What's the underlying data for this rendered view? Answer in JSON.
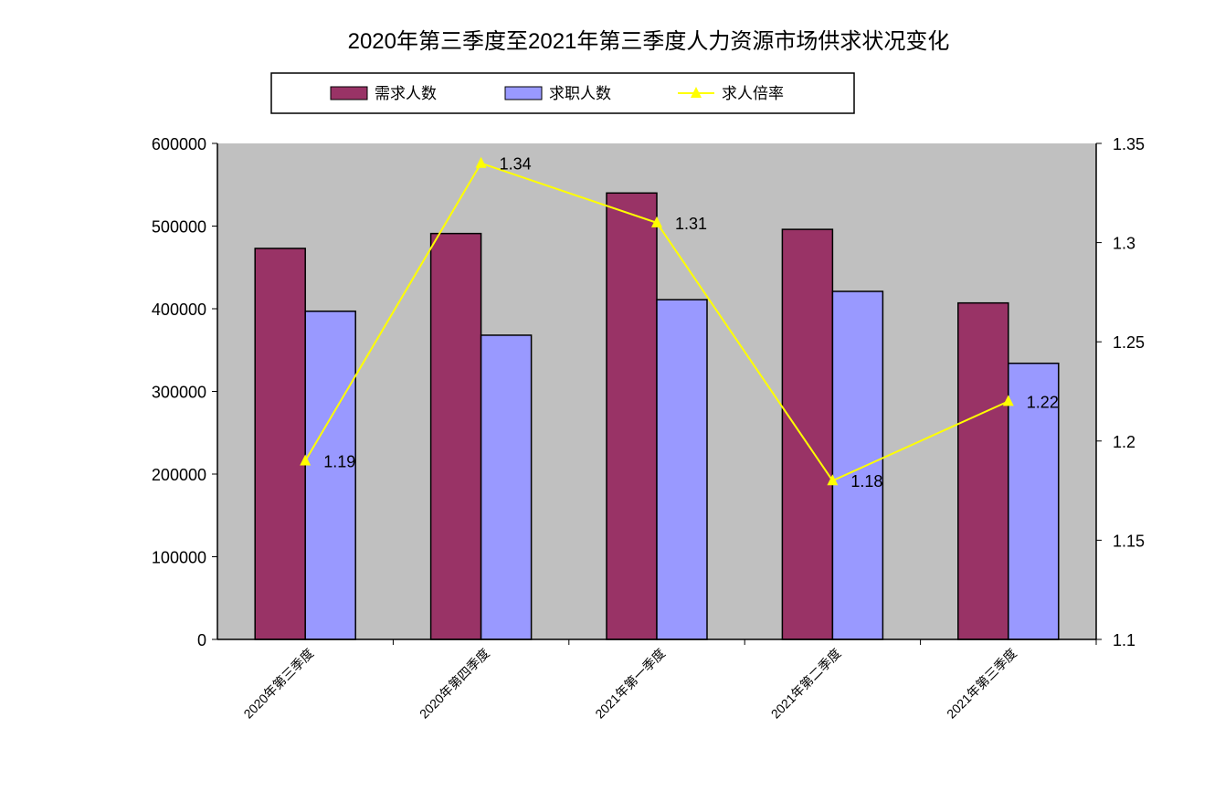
{
  "chart_data": {
    "type": "bar",
    "title": "2020年第三季度至2021年第三季度人力资源市场供求状况变化",
    "categories": [
      "2020年第三季度",
      "2020年第四季度",
      "2021年第一季度",
      "2021年第二季度",
      "2021年第三季度"
    ],
    "series": [
      {
        "name": "需求人数",
        "type": "bar",
        "axis": "left",
        "color": "#993366",
        "values": [
          473000,
          491000,
          540000,
          496000,
          407000
        ]
      },
      {
        "name": "求职人数",
        "type": "bar",
        "axis": "left",
        "color": "#9999ff",
        "values": [
          397000,
          368000,
          411000,
          421000,
          334000
        ]
      },
      {
        "name": "求人倍率",
        "type": "line",
        "axis": "right",
        "color": "#ffff00",
        "marker": "triangle",
        "values": [
          1.19,
          1.34,
          1.31,
          1.18,
          1.22
        ],
        "labels": [
          "1.19",
          "1.34",
          "1.31",
          "1.18",
          "1.22"
        ]
      }
    ],
    "ylim": [
      0,
      600000
    ],
    "yticks": [
      "0",
      "100000",
      "200000",
      "300000",
      "400000",
      "500000",
      "600000"
    ],
    "y2lim": [
      1.1,
      1.35
    ],
    "y2ticks": [
      "1.1",
      "1.15",
      "1.2",
      "1.25",
      "1.3",
      "1.35"
    ],
    "plot_background": "#c0c0c0",
    "grid": false,
    "legend": "top"
  }
}
